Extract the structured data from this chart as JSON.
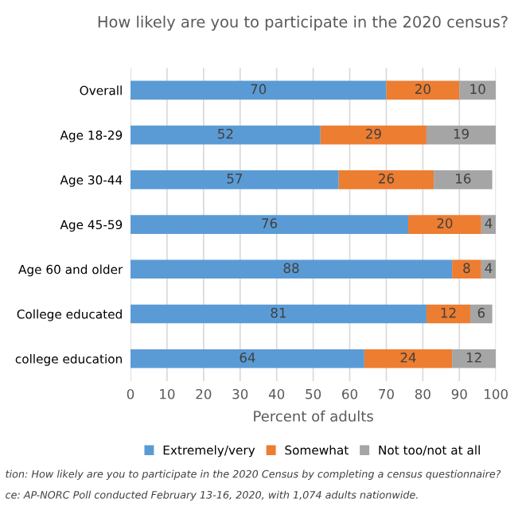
{
  "chart_data": {
    "type": "bar",
    "orientation": "horizontal",
    "stacked": true,
    "title": "How likely are you to participate in the 2020 census?",
    "xlabel": "Percent of adults",
    "categories": [
      "Overall",
      "Age 18-29",
      "Age 30-44",
      "Age 45-59",
      "Age 60 and older",
      "College educated",
      "college education"
    ],
    "series": [
      {
        "name": "Extremely/very",
        "color": "#5b9bd5",
        "values": [
          70,
          52,
          57,
          76,
          88,
          81,
          64
        ]
      },
      {
        "name": "Somewhat",
        "color": "#ed7d31",
        "values": [
          20,
          29,
          26,
          20,
          8,
          12,
          24
        ]
      },
      {
        "name": "Not too/not at all",
        "color": "#a5a5a5",
        "values": [
          10,
          19,
          16,
          4,
          4,
          6,
          12
        ]
      }
    ],
    "data_labels": true,
    "xlim": [
      0,
      100
    ],
    "xticks": [
      0,
      10,
      20,
      30,
      40,
      50,
      60,
      70,
      80,
      90,
      100
    ],
    "grid": "x",
    "legend": "bottom",
    "annotations": [
      "tion: How likely are you to participate in the 2020 Census by completing a census questionnaire?",
      "ce: AP-NORC Poll conducted February 13-16, 2020, with 1,074 adults nationwide."
    ]
  }
}
